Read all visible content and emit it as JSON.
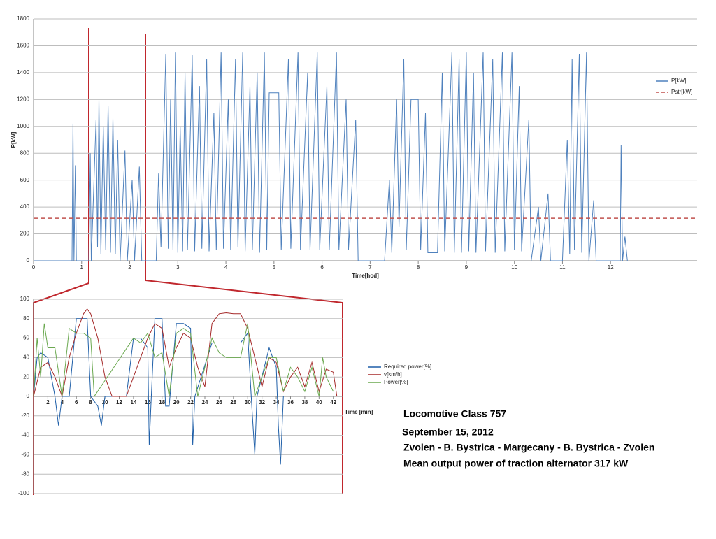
{
  "chart_data": [
    {
      "type": "line",
      "xlabel": "Time[hod]",
      "ylabel": "P[kW]",
      "xlim": [
        0,
        13.8
      ],
      "ylim": [
        0,
        1800
      ],
      "xticks": [
        0,
        1,
        2,
        3,
        4,
        5,
        6,
        7,
        8,
        9,
        10,
        11,
        12
      ],
      "yticks": [
        0,
        200,
        400,
        600,
        800,
        1000,
        1200,
        1400,
        1600,
        1800
      ],
      "grid": true,
      "legend": "right",
      "series": [
        {
          "name": "P[kW]",
          "color": "#4f81bd",
          "x": [
            0,
            0.8,
            0.82,
            0.84,
            0.87,
            0.89,
            1.15,
            1.18,
            1.2,
            1.3,
            1.33,
            1.36,
            1.4,
            1.45,
            1.5,
            1.55,
            1.6,
            1.65,
            1.7,
            1.75,
            1.8,
            1.9,
            1.95,
            2.05,
            2.1,
            2.2,
            2.25,
            2.55,
            2.6,
            2.65,
            2.75,
            2.8,
            2.85,
            2.9,
            2.95,
            3.0,
            3.05,
            3.1,
            3.15,
            3.2,
            3.3,
            3.35,
            3.45,
            3.5,
            3.6,
            3.65,
            3.75,
            3.8,
            3.9,
            3.95,
            4.05,
            4.1,
            4.2,
            4.25,
            4.35,
            4.4,
            4.5,
            4.55,
            4.65,
            4.7,
            4.8,
            4.85,
            4.9,
            5.1,
            5.15,
            5.3,
            5.35,
            5.5,
            5.55,
            5.7,
            5.75,
            5.9,
            5.95,
            6.1,
            6.15,
            6.3,
            6.35,
            6.5,
            6.55,
            6.7,
            6.75,
            7.3,
            7.4,
            7.45,
            7.55,
            7.6,
            7.7,
            7.75,
            7.85,
            8.0,
            8.05,
            8.15,
            8.2,
            8.4,
            8.5,
            8.55,
            8.7,
            8.75,
            8.85,
            8.9,
            9.0,
            9.05,
            9.15,
            9.2,
            9.35,
            9.4,
            9.55,
            9.6,
            9.75,
            9.8,
            9.95,
            10.0,
            10.1,
            10.15,
            10.3,
            10.35,
            10.5,
            10.55,
            10.7,
            10.75,
            11.0,
            11.1,
            11.15,
            11.2,
            11.25,
            11.35,
            11.4,
            11.5,
            11.55,
            11.65,
            11.7,
            12.2,
            12.22,
            12.25,
            12.3,
            12.35
          ],
          "values": [
            0,
            0,
            1020,
            0,
            710,
            0,
            0,
            800,
            0,
            1050,
            100,
            1200,
            50,
            1000,
            80,
            1150,
            60,
            1060,
            50,
            900,
            0,
            820,
            0,
            600,
            0,
            700,
            0,
            0,
            650,
            100,
            1540,
            90,
            1200,
            80,
            1550,
            60,
            1000,
            70,
            1400,
            80,
            1530,
            70,
            1300,
            90,
            1500,
            70,
            1100,
            80,
            1550,
            90,
            1200,
            80,
            1500,
            100,
            1550,
            70,
            1300,
            80,
            1400,
            60,
            1550,
            80,
            1250,
            1250,
            80,
            1500,
            90,
            1550,
            80,
            1400,
            80,
            1550,
            80,
            1300,
            80,
            1550,
            80,
            1200,
            80,
            1050,
            0,
            0,
            600,
            60,
            1200,
            250,
            1500,
            80,
            1200,
            1200,
            80,
            1100,
            60,
            60,
            1400,
            70,
            1550,
            60,
            1500,
            60,
            1550,
            70,
            1400,
            60,
            1550,
            70,
            1500,
            60,
            1550,
            70,
            1550,
            80,
            1300,
            70,
            1050,
            0,
            400,
            0,
            500,
            0,
            0,
            900,
            50,
            1500,
            80,
            1540,
            60,
            1550,
            0,
            450,
            0,
            0,
            860,
            0,
            180,
            0
          ]
        },
        {
          "name": "Pstr[kW]",
          "color": "#c0504d",
          "dashed": true,
          "x": [
            0,
            13.8
          ],
          "values": [
            317,
            317
          ]
        }
      ]
    },
    {
      "type": "line",
      "xlabel": "Time [min]",
      "xlim": [
        0,
        43.3
      ],
      "ylim": [
        -100,
        100
      ],
      "xticks": [
        2,
        4,
        6,
        8,
        10,
        12,
        14,
        16,
        18,
        20,
        22,
        24,
        26,
        28,
        30,
        32,
        34,
        36,
        38,
        40,
        42
      ],
      "yticks": [
        -100,
        -80,
        -60,
        -40,
        -20,
        0,
        20,
        40,
        60,
        80,
        100
      ],
      "grid": true,
      "legend": "right",
      "series": [
        {
          "name": "Required power[%]",
          "color": "#1f5fa8",
          "x": [
            0,
            0.5,
            1,
            2,
            3,
            3.5,
            4,
            5,
            6,
            7,
            7.5,
            8,
            9,
            9.5,
            10,
            13,
            14,
            15,
            16,
            16.2,
            16.5,
            17,
            18,
            18.5,
            19,
            20,
            21,
            22,
            22.3,
            22.6,
            25,
            29,
            30,
            30.5,
            31,
            31.3,
            33,
            34,
            34.3,
            34.6,
            35
          ],
          "values": [
            0,
            40,
            45,
            40,
            0,
            -30,
            0,
            0,
            80,
            80,
            80,
            0,
            -10,
            -30,
            0,
            0,
            60,
            60,
            50,
            -50,
            0,
            80,
            80,
            -10,
            -10,
            75,
            75,
            70,
            -50,
            0,
            55,
            55,
            65,
            0,
            -60,
            0,
            50,
            30,
            -30,
            -70,
            0
          ]
        },
        {
          "name": "v[km/h]",
          "color": "#a52a2a",
          "x": [
            0,
            1,
            2,
            3,
            4,
            5,
            6,
            7,
            7.5,
            8,
            9,
            10,
            11,
            13,
            14,
            15,
            16,
            17,
            18,
            19,
            20,
            21,
            22,
            23,
            24,
            25,
            26,
            27,
            28,
            29,
            30,
            31,
            32,
            33,
            34,
            35,
            36,
            37,
            38,
            39,
            40,
            41,
            42,
            42.5
          ],
          "values": [
            0,
            30,
            35,
            20,
            0,
            40,
            65,
            85,
            90,
            85,
            60,
            20,
            0,
            0,
            20,
            40,
            60,
            75,
            70,
            30,
            50,
            65,
            60,
            30,
            10,
            75,
            85,
            86,
            85,
            85,
            70,
            40,
            10,
            40,
            35,
            5,
            20,
            30,
            10,
            35,
            5,
            28,
            25,
            0
          ]
        },
        {
          "name": "Power[%]",
          "color": "#6aa84f",
          "x": [
            0,
            0.5,
            1,
            1.5,
            2,
            3,
            4,
            5,
            6,
            7,
            8,
            8.5,
            14,
            15,
            16,
            17,
            18,
            19,
            20,
            21,
            22,
            23,
            25,
            26,
            27,
            28,
            29,
            30,
            31,
            33,
            34,
            35,
            36,
            37,
            38,
            39,
            40,
            40.5,
            41,
            42
          ],
          "values": [
            0,
            60,
            20,
            75,
            50,
            50,
            0,
            70,
            65,
            65,
            60,
            0,
            60,
            55,
            65,
            40,
            45,
            0,
            65,
            70,
            65,
            0,
            60,
            45,
            40,
            40,
            40,
            75,
            0,
            40,
            40,
            5,
            30,
            20,
            5,
            30,
            0,
            40,
            20,
            5
          ]
        }
      ]
    }
  ],
  "caption": [
    "Locomotive Class 757",
    "September  15, 2012",
    "Zvolen - B. Bystrica - Margecany - B. Bystrica - Zvolen",
    "Mean output power of traction alternator 317 kW"
  ]
}
